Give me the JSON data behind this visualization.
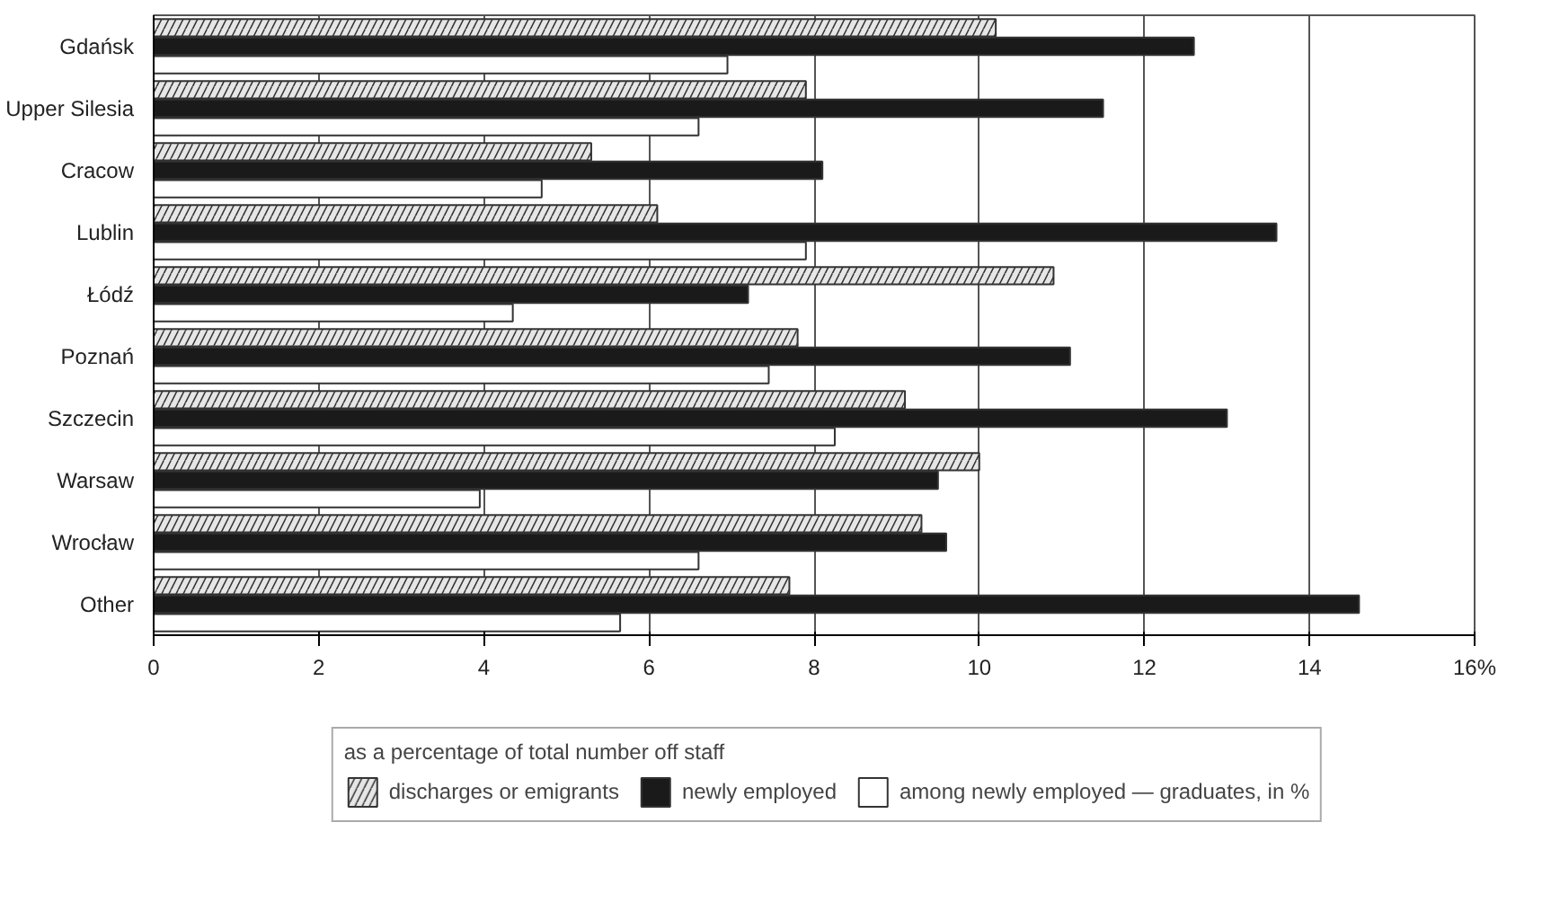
{
  "chart_data": {
    "type": "bar",
    "orientation": "horizontal",
    "categories": [
      "Gdańsk",
      "Upper Silesia",
      "Cracow",
      "Lublin",
      "Łódź",
      "Poznań",
      "Szczecin",
      "Warsaw",
      "Wrocław",
      "Other"
    ],
    "series": [
      {
        "name": "discharges or emigrants",
        "color": "#e6e6e6",
        "values": [
          10.2,
          7.9,
          5.3,
          6.1,
          10.9,
          7.8,
          9.1,
          10.0,
          9.3,
          7.7
        ]
      },
      {
        "name": "newly employed",
        "color": "#1a1a1a",
        "values": [
          12.6,
          11.5,
          8.1,
          13.6,
          7.2,
          11.1,
          13.0,
          9.5,
          9.6,
          14.6
        ]
      },
      {
        "name": "among newly employed — graduates, in %",
        "color": "#ffffff",
        "values": [
          6.95,
          6.6,
          4.7,
          7.9,
          4.35,
          7.45,
          8.25,
          3.95,
          6.6,
          5.65
        ]
      }
    ],
    "legend_title": "as a percentage of total number off staff",
    "xlim": [
      0,
      16
    ],
    "xticks": [
      0,
      2,
      4,
      6,
      8,
      10,
      12,
      14,
      {
        "value": 16,
        "label": "16%"
      }
    ],
    "grid": "x",
    "legend": "bottom"
  }
}
